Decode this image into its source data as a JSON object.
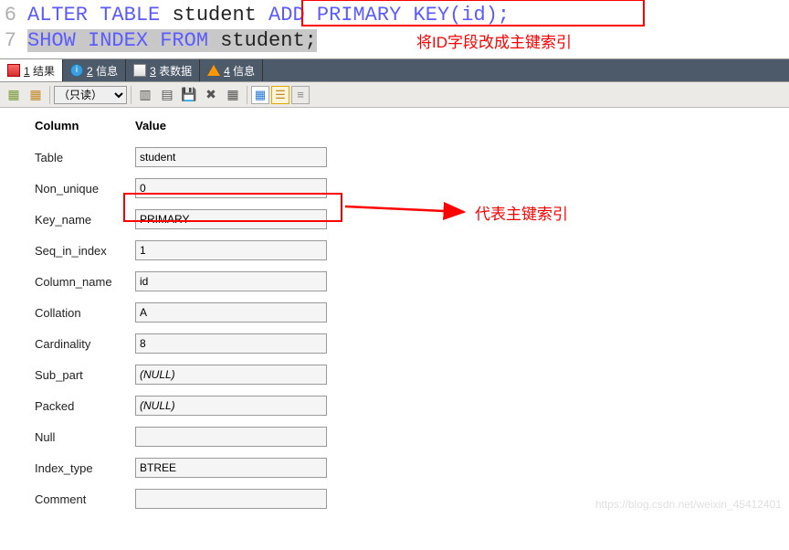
{
  "code": {
    "line6": {
      "no": "6",
      "pre": "ALTER TABLE ",
      "mid": "student",
      "boxed": " ADD PRIMARY KEY(id);"
    },
    "line7": {
      "no": "7",
      "sel1": "SHOW INDEX FROM ",
      "sel2": "student;"
    }
  },
  "annotations": {
    "top": "将ID字段改成主键索引",
    "mid": "代表主键索引"
  },
  "tabs": [
    {
      "num": "1",
      "label": "结果"
    },
    {
      "num": "2",
      "label": "信息"
    },
    {
      "num": "3",
      "label": "表数据"
    },
    {
      "num": "4",
      "label": "信息"
    }
  ],
  "toolbar": {
    "readonly": "（只读）"
  },
  "headers": {
    "col1": "Column",
    "col2": "Value"
  },
  "rows": [
    {
      "label": "Table",
      "value": "student",
      "italic": false
    },
    {
      "label": "Non_unique",
      "value": "0",
      "italic": false
    },
    {
      "label": "Key_name",
      "value": "PRIMARY",
      "italic": false
    },
    {
      "label": "Seq_in_index",
      "value": "1",
      "italic": false
    },
    {
      "label": "Column_name",
      "value": "id",
      "italic": false
    },
    {
      "label": "Collation",
      "value": "A",
      "italic": false
    },
    {
      "label": "Cardinality",
      "value": "8",
      "italic": false
    },
    {
      "label": "Sub_part",
      "value": "(NULL)",
      "italic": true
    },
    {
      "label": "Packed",
      "value": "(NULL)",
      "italic": true
    },
    {
      "label": "Null",
      "value": "",
      "italic": false
    },
    {
      "label": "Index_type",
      "value": "BTREE",
      "italic": false
    },
    {
      "label": "Comment",
      "value": "",
      "italic": false
    }
  ],
  "watermark": "https://blog.csdn.net/weixin_45412401",
  "colors": {
    "red": "#ff0000",
    "kw": "#5b5bff",
    "toolbar_bg": "#eceae6",
    "tabs_bg": "#4d5a6a"
  }
}
